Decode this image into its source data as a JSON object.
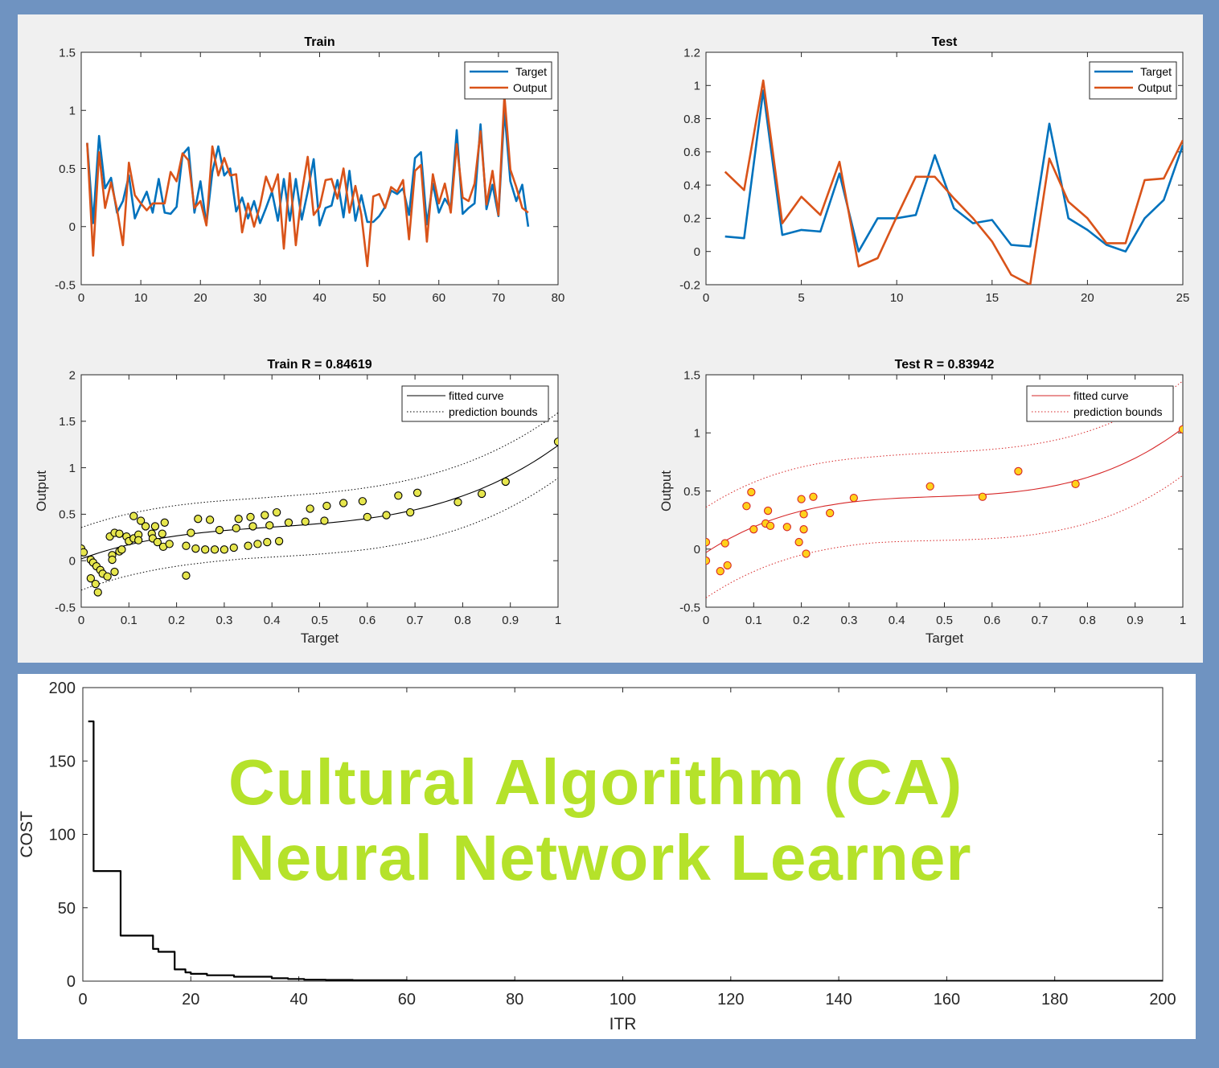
{
  "chart_data": [
    {
      "id": "train_ts",
      "type": "line",
      "title": "Train",
      "xlabel": "",
      "ylabel": "",
      "xlim": [
        0,
        80
      ],
      "ylim": [
        -0.5,
        1.5
      ],
      "xticks": [
        0,
        10,
        20,
        30,
        40,
        50,
        60,
        70,
        80
      ],
      "yticks": [
        -0.5,
        0,
        0.5,
        1,
        1.5
      ],
      "legend": "top-right",
      "grid": false,
      "series": [
        {
          "name": "Target",
          "color": "#0072bd",
          "values": [
            0.72,
            0.03,
            0.78,
            0.33,
            0.42,
            0.12,
            0.22,
            0.44,
            0.07,
            0.19,
            0.3,
            0.12,
            0.41,
            0.12,
            0.11,
            0.17,
            0.62,
            0.68,
            0.12,
            0.39,
            0.02,
            0.47,
            0.69,
            0.44,
            0.5,
            0.13,
            0.25,
            0.07,
            0.22,
            0.03,
            0.16,
            0.3,
            0.05,
            0.41,
            0.05,
            0.41,
            0.06,
            0.3,
            0.58,
            0.01,
            0.16,
            0.18,
            0.4,
            0.08,
            0.48,
            0.05,
            0.27,
            0.04,
            0.04,
            0.09,
            0.17,
            0.31,
            0.28,
            0.33,
            0.1,
            0.59,
            0.64,
            0.02,
            0.37,
            0.12,
            0.24,
            0.16,
            0.83,
            0.11,
            0.16,
            0.2,
            0.88,
            0.15,
            0.36,
            0.09,
            1.0,
            0.39,
            0.22,
            0.36,
            0.0
          ]
        },
        {
          "name": "Output",
          "color": "#d95319",
          "values": [
            0.72,
            -0.25,
            0.64,
            0.16,
            0.38,
            0.15,
            -0.16,
            0.55,
            0.27,
            0.2,
            0.14,
            0.2,
            0.2,
            0.2,
            0.47,
            0.39,
            0.63,
            0.57,
            0.16,
            0.22,
            0.01,
            0.69,
            0.44,
            0.59,
            0.44,
            0.45,
            -0.05,
            0.2,
            0.0,
            0.18,
            0.43,
            0.3,
            0.45,
            -0.19,
            0.46,
            -0.16,
            0.29,
            0.6,
            0.1,
            0.17,
            0.4,
            0.41,
            0.24,
            0.5,
            0.12,
            0.35,
            0.1,
            -0.34,
            0.26,
            0.28,
            0.16,
            0.34,
            0.3,
            0.4,
            -0.11,
            0.48,
            0.53,
            -0.13,
            0.45,
            0.2,
            0.37,
            0.12,
            0.71,
            0.25,
            0.22,
            0.37,
            0.82,
            0.19,
            0.48,
            0.1,
            1.13,
            0.49,
            0.34,
            0.16,
            0.12
          ]
        }
      ]
    },
    {
      "id": "test_ts",
      "type": "line",
      "title": "Test",
      "xlabel": "",
      "ylabel": "",
      "xlim": [
        0,
        25
      ],
      "ylim": [
        -0.2,
        1.2
      ],
      "xticks": [
        0,
        5,
        10,
        15,
        20,
        25
      ],
      "yticks": [
        -0.2,
        0,
        0.2,
        0.4,
        0.6,
        0.8,
        1,
        1.2
      ],
      "legend": "top-right",
      "grid": false,
      "series": [
        {
          "name": "Target",
          "color": "#0072bd",
          "values": [
            0.09,
            0.08,
            0.97,
            0.1,
            0.13,
            0.12,
            0.47,
            0.0,
            0.2,
            0.2,
            0.22,
            0.58,
            0.26,
            0.17,
            0.19,
            0.04,
            0.03,
            0.77,
            0.2,
            0.13,
            0.04,
            0.0,
            0.2,
            0.31,
            0.64
          ]
        },
        {
          "name": "Output",
          "color": "#d95319",
          "values": [
            0.48,
            0.37,
            1.03,
            0.17,
            0.33,
            0.22,
            0.54,
            -0.09,
            -0.04,
            0.21,
            0.45,
            0.45,
            0.32,
            0.2,
            0.06,
            -0.14,
            -0.2,
            0.56,
            0.3,
            0.2,
            0.05,
            0.05,
            0.43,
            0.44,
            0.67
          ]
        }
      ]
    },
    {
      "id": "train_reg",
      "type": "scatter",
      "title": "Train  R = 0.84619",
      "xlabel": "Target",
      "ylabel": "Output",
      "xlim": [
        0,
        1
      ],
      "ylim": [
        -0.5,
        2
      ],
      "xticks": [
        0,
        0.1,
        0.2,
        0.3,
        0.4,
        0.5,
        0.6,
        0.7,
        0.8,
        0.9,
        1
      ],
      "yticks": [
        -0.5,
        0,
        0.5,
        1,
        1.5,
        2
      ],
      "legend": "top-right",
      "grid": false,
      "legend_entries": [
        "fitted curve",
        "prediction bounds"
      ],
      "curve_color": "#000000",
      "marker_fill": "#e6e64d",
      "marker_edge": "#000000",
      "fit": {
        "coeffs": [
          0.02,
          1.87,
          -3.8,
          3.15
        ],
        "band": 0.32
      },
      "points": [
        [
          0.0,
          0.13
        ],
        [
          0.005,
          0.09
        ],
        [
          0.02,
          0.01
        ],
        [
          0.02,
          -0.19
        ],
        [
          0.025,
          -0.02
        ],
        [
          0.03,
          -0.25
        ],
        [
          0.032,
          -0.06
        ],
        [
          0.035,
          -0.34
        ],
        [
          0.04,
          -0.1
        ],
        [
          0.045,
          -0.14
        ],
        [
          0.055,
          -0.17
        ],
        [
          0.06,
          0.26
        ],
        [
          0.065,
          0.06
        ],
        [
          0.065,
          0.01
        ],
        [
          0.07,
          0.3
        ],
        [
          0.07,
          -0.12
        ],
        [
          0.08,
          0.29
        ],
        [
          0.08,
          0.1
        ],
        [
          0.085,
          0.12
        ],
        [
          0.095,
          0.26
        ],
        [
          0.1,
          0.21
        ],
        [
          0.11,
          0.48
        ],
        [
          0.11,
          0.24
        ],
        [
          0.12,
          0.28
        ],
        [
          0.12,
          0.22
        ],
        [
          0.125,
          0.43
        ],
        [
          0.135,
          0.37
        ],
        [
          0.148,
          0.29
        ],
        [
          0.15,
          0.24
        ],
        [
          0.155,
          0.37
        ],
        [
          0.16,
          0.2
        ],
        [
          0.17,
          0.29
        ],
        [
          0.172,
          0.15
        ],
        [
          0.175,
          0.41
        ],
        [
          0.185,
          0.18
        ],
        [
          0.22,
          -0.16
        ],
        [
          0.22,
          0.16
        ],
        [
          0.23,
          0.3
        ],
        [
          0.24,
          0.13
        ],
        [
          0.245,
          0.45
        ],
        [
          0.26,
          0.12
        ],
        [
          0.27,
          0.44
        ],
        [
          0.28,
          0.12
        ],
        [
          0.29,
          0.33
        ],
        [
          0.3,
          0.12
        ],
        [
          0.32,
          0.14
        ],
        [
          0.325,
          0.35
        ],
        [
          0.33,
          0.45
        ],
        [
          0.35,
          0.16
        ],
        [
          0.355,
          0.47
        ],
        [
          0.36,
          0.37
        ],
        [
          0.37,
          0.18
        ],
        [
          0.385,
          0.49
        ],
        [
          0.39,
          0.2
        ],
        [
          0.395,
          0.38
        ],
        [
          0.41,
          0.52
        ],
        [
          0.415,
          0.21
        ],
        [
          0.435,
          0.41
        ],
        [
          0.47,
          0.42
        ],
        [
          0.48,
          0.56
        ],
        [
          0.51,
          0.43
        ],
        [
          0.515,
          0.59
        ],
        [
          0.55,
          0.62
        ],
        [
          0.59,
          0.64
        ],
        [
          0.6,
          0.47
        ],
        [
          0.64,
          0.49
        ],
        [
          0.665,
          0.7
        ],
        [
          0.69,
          0.52
        ],
        [
          0.705,
          0.73
        ],
        [
          0.79,
          0.63
        ],
        [
          0.84,
          0.72
        ],
        [
          0.89,
          0.85
        ],
        [
          1.0,
          1.28
        ]
      ]
    },
    {
      "id": "test_reg",
      "type": "scatter",
      "title": "Test  R = 0.83942",
      "xlabel": "Target",
      "ylabel": "Output",
      "xlim": [
        0,
        1
      ],
      "ylim": [
        -0.5,
        1.5
      ],
      "xticks": [
        0,
        0.1,
        0.2,
        0.3,
        0.4,
        0.5,
        0.6,
        0.7,
        0.8,
        0.9,
        1
      ],
      "yticks": [
        -0.5,
        0,
        0.5,
        1,
        1.5
      ],
      "legend": "top-right",
      "grid": false,
      "legend_entries": [
        "fitted curve",
        "prediction bounds"
      ],
      "curve_color": "#d62728",
      "marker_fill": "#ffd11a",
      "marker_edge": "#d62728",
      "fit": {
        "coeffs": [
          -0.03,
          2.7,
          -5.3,
          3.67
        ],
        "band": 0.37
      },
      "points": [
        [
          0.0,
          0.06
        ],
        [
          0.0,
          -0.1
        ],
        [
          0.03,
          -0.19
        ],
        [
          0.04,
          0.05
        ],
        [
          0.045,
          -0.14
        ],
        [
          0.085,
          0.37
        ],
        [
          0.095,
          0.49
        ],
        [
          0.1,
          0.17
        ],
        [
          0.125,
          0.22
        ],
        [
          0.13,
          0.33
        ],
        [
          0.135,
          0.2
        ],
        [
          0.17,
          0.19
        ],
        [
          0.195,
          0.06
        ],
        [
          0.2,
          0.43
        ],
        [
          0.205,
          0.17
        ],
        [
          0.205,
          0.3
        ],
        [
          0.21,
          -0.04
        ],
        [
          0.225,
          0.45
        ],
        [
          0.26,
          0.31
        ],
        [
          0.31,
          0.44
        ],
        [
          0.47,
          0.54
        ],
        [
          0.58,
          0.45
        ],
        [
          0.655,
          0.67
        ],
        [
          0.775,
          0.56
        ],
        [
          1.0,
          1.03
        ]
      ]
    },
    {
      "id": "cost",
      "type": "line",
      "title": "",
      "xlabel": "ITR",
      "ylabel": "COST",
      "xlim": [
        0,
        200
      ],
      "ylim": [
        0,
        200
      ],
      "xticks": [
        0,
        20,
        40,
        60,
        80,
        100,
        120,
        140,
        160,
        180,
        200
      ],
      "yticks": [
        0,
        50,
        100,
        150,
        200
      ],
      "grid": false,
      "series": [
        {
          "color": "#000000",
          "step": true,
          "x": [
            1,
            2,
            7,
            13,
            14,
            17,
            18,
            19,
            20,
            23,
            27,
            28,
            32,
            35,
            38,
            41,
            45,
            50,
            60,
            80,
            120,
            200
          ],
          "values": [
            177,
            75,
            31,
            22,
            20,
            8,
            8,
            6,
            5,
            4,
            4,
            3,
            3,
            2,
            1.5,
            1,
            0.8,
            0.6,
            0.4,
            0.3,
            0.2,
            0.2
          ]
        }
      ]
    }
  ],
  "overlay": {
    "line1": "Cultural Algorithm (CA)",
    "line2": "Neural Network Learner",
    "color": "#b5e22a"
  }
}
